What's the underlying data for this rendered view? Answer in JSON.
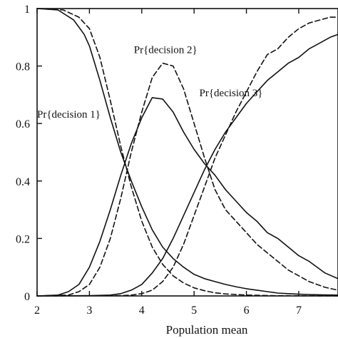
{
  "chart_data": {
    "type": "line",
    "title": "",
    "xlabel": "Population mean",
    "ylabel": "",
    "xlim": [
      2,
      7.75
    ],
    "ylim": [
      0,
      1
    ],
    "x_ticks": [
      "2",
      "3",
      "4",
      "5",
      "6",
      "7"
    ],
    "y_ticks": [
      "0",
      "0.2",
      "0.4",
      "0.6",
      "0.8",
      "1"
    ],
    "grid": false,
    "annotations": [
      {
        "text": "Pr{decision 1}",
        "x": 2.0,
        "y": 0.62
      },
      {
        "text": "Pr{decision 2}",
        "x": 3.85,
        "y": 0.845
      },
      {
        "text": "Pr{decision 3}",
        "x": 5.1,
        "y": 0.695
      }
    ],
    "series": [
      {
        "dash": "solid",
        "x": [
          2.0,
          2.4,
          2.7,
          2.9,
          3.0,
          3.2,
          3.4,
          3.6,
          3.8,
          4.0,
          4.2,
          4.4,
          4.6,
          4.8,
          5.0,
          5.2,
          5.4,
          5.6,
          5.8,
          6.0,
          6.2,
          6.4,
          6.6,
          6.8,
          7.0,
          7.2,
          7.4,
          7.75
        ],
        "y": [
          1.0,
          0.995,
          0.96,
          0.91,
          0.87,
          0.75,
          0.62,
          0.5,
          0.4,
          0.31,
          0.23,
          0.17,
          0.13,
          0.1,
          0.075,
          0.06,
          0.05,
          0.04,
          0.032,
          0.025,
          0.02,
          0.015,
          0.01,
          0.008,
          0.006,
          0.005,
          0.004,
          0.003
        ]
      },
      {
        "dash": "dashed",
        "x": [
          2.0,
          2.5,
          2.8,
          3.0,
          3.2,
          3.4,
          3.6,
          3.8,
          4.0,
          4.2,
          4.4,
          4.6,
          4.8,
          5.0,
          5.2,
          5.4,
          5.6,
          6.0,
          6.5,
          7.0,
          7.75
        ],
        "y": [
          1.0,
          0.995,
          0.97,
          0.93,
          0.83,
          0.68,
          0.52,
          0.38,
          0.26,
          0.17,
          0.11,
          0.07,
          0.045,
          0.028,
          0.018,
          0.011,
          0.007,
          0.003,
          0.001,
          0.0005,
          0.0
        ]
      },
      {
        "dash": "solid",
        "x": [
          2.0,
          2.4,
          2.6,
          2.8,
          3.0,
          3.2,
          3.4,
          3.6,
          3.8,
          4.0,
          4.2,
          4.4,
          4.6,
          4.8,
          5.0,
          5.2,
          5.4,
          5.6,
          5.8,
          6.0,
          6.2,
          6.4,
          6.6,
          6.8,
          7.0,
          7.2,
          7.5,
          7.75
        ],
        "y": [
          0.0,
          0.003,
          0.015,
          0.04,
          0.1,
          0.19,
          0.3,
          0.42,
          0.53,
          0.62,
          0.69,
          0.685,
          0.64,
          0.57,
          0.51,
          0.46,
          0.42,
          0.37,
          0.33,
          0.29,
          0.26,
          0.22,
          0.2,
          0.17,
          0.14,
          0.12,
          0.08,
          0.06
        ]
      },
      {
        "dash": "dashed",
        "x": [
          2.0,
          2.6,
          2.8,
          3.0,
          3.2,
          3.4,
          3.6,
          3.8,
          4.0,
          4.2,
          4.4,
          4.6,
          4.8,
          5.0,
          5.2,
          5.4,
          5.6,
          5.8,
          6.0,
          6.2,
          6.4,
          6.6,
          6.8,
          7.0,
          7.2,
          7.5,
          7.75
        ],
        "y": [
          0.0,
          0.003,
          0.015,
          0.04,
          0.1,
          0.2,
          0.34,
          0.5,
          0.64,
          0.76,
          0.81,
          0.8,
          0.72,
          0.6,
          0.48,
          0.37,
          0.3,
          0.26,
          0.22,
          0.18,
          0.15,
          0.12,
          0.09,
          0.07,
          0.05,
          0.03,
          0.02
        ]
      },
      {
        "dash": "solid",
        "x": [
          2.0,
          3.0,
          3.4,
          3.6,
          3.8,
          4.0,
          4.2,
          4.4,
          4.6,
          4.8,
          5.0,
          5.2,
          5.4,
          5.6,
          5.8,
          6.0,
          6.2,
          6.4,
          6.6,
          6.8,
          7.0,
          7.2,
          7.4,
          7.6,
          7.75
        ],
        "y": [
          0.0,
          0.001,
          0.003,
          0.008,
          0.02,
          0.04,
          0.08,
          0.13,
          0.2,
          0.28,
          0.36,
          0.44,
          0.51,
          0.57,
          0.62,
          0.67,
          0.71,
          0.75,
          0.78,
          0.81,
          0.83,
          0.86,
          0.88,
          0.9,
          0.91
        ]
      },
      {
        "dash": "dashed",
        "x": [
          2.0,
          3.6,
          3.8,
          4.0,
          4.2,
          4.4,
          4.6,
          4.8,
          5.0,
          5.2,
          5.4,
          5.6,
          5.8,
          6.0,
          6.2,
          6.4,
          6.6,
          6.8,
          7.0,
          7.2,
          7.4,
          7.6,
          7.75
        ],
        "y": [
          0.0,
          0.001,
          0.003,
          0.008,
          0.02,
          0.05,
          0.1,
          0.18,
          0.28,
          0.38,
          0.48,
          0.56,
          0.64,
          0.71,
          0.78,
          0.84,
          0.86,
          0.9,
          0.93,
          0.95,
          0.96,
          0.97,
          0.97
        ]
      }
    ]
  }
}
